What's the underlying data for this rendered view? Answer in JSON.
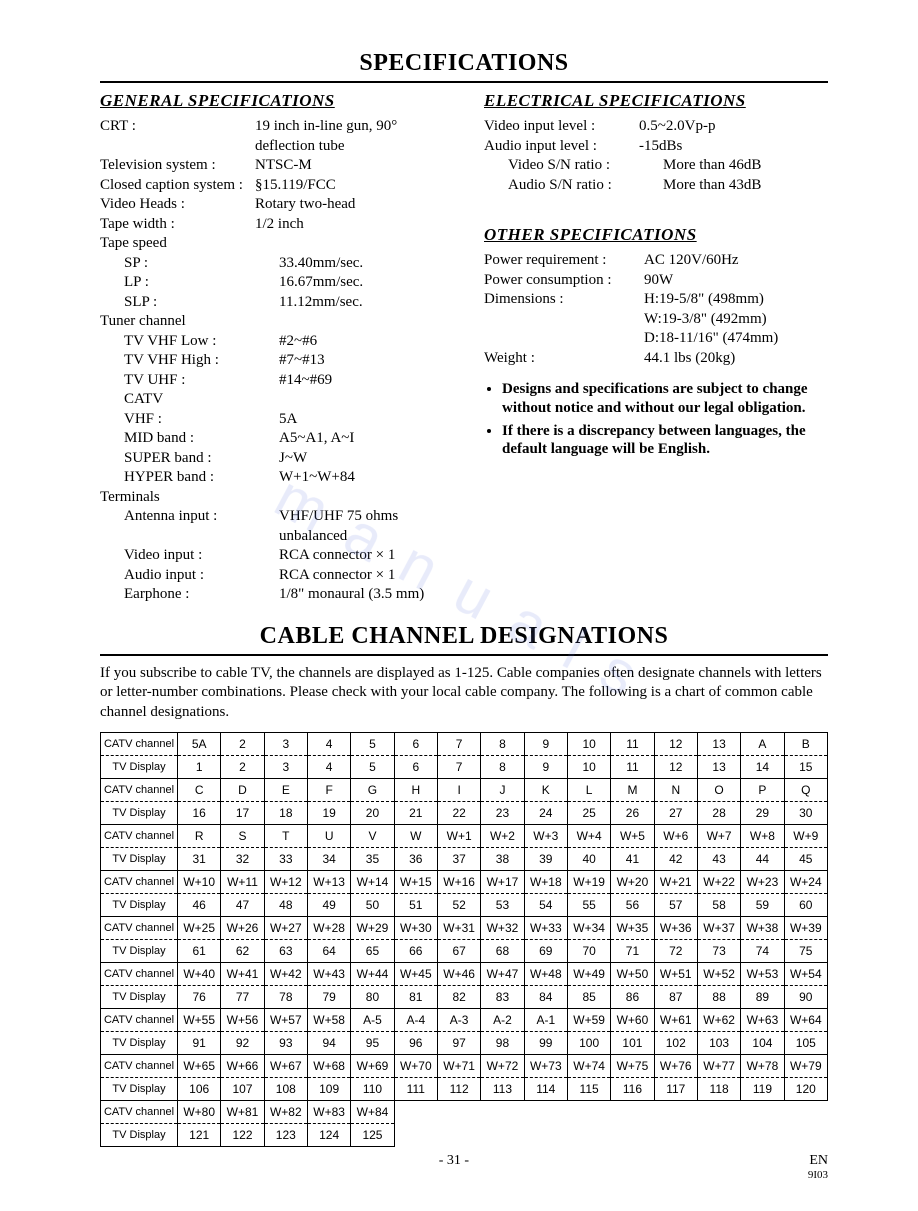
{
  "page_title": "SPECIFICATIONS",
  "general": {
    "title": "GENERAL SPECIFICATIONS",
    "rows": [
      {
        "label": "CRT :",
        "value": "19 inch in-line gun, 90°",
        "indent": false
      },
      {
        "label": "",
        "value": "deflection tube",
        "indent": false
      },
      {
        "label": "Television system :",
        "value": "NTSC-M",
        "indent": false
      },
      {
        "label": "Closed caption system :",
        "value": "§15.119/FCC",
        "indent": false
      },
      {
        "label": "Video Heads :",
        "value": "Rotary two-head",
        "indent": false
      },
      {
        "label": "Tape width :",
        "value": "1/2 inch",
        "indent": false
      },
      {
        "label": "Tape speed",
        "value": "",
        "indent": false
      },
      {
        "label": "SP :",
        "value": "33.40mm/sec.",
        "indent": true
      },
      {
        "label": "LP :",
        "value": "16.67mm/sec.",
        "indent": true
      },
      {
        "label": "SLP :",
        "value": "11.12mm/sec.",
        "indent": true
      },
      {
        "label": "Tuner channel",
        "value": "",
        "indent": false
      },
      {
        "label": "TV VHF Low :",
        "value": "#2~#6",
        "indent": true
      },
      {
        "label": "TV VHF High :",
        "value": "#7~#13",
        "indent": true
      },
      {
        "label": "TV UHF :",
        "value": "#14~#69",
        "indent": true
      },
      {
        "label": "CATV",
        "value": "",
        "indent": true
      },
      {
        "label": "VHF :",
        "value": "5A",
        "indent": true
      },
      {
        "label": "MID band :",
        "value": "A5~A1, A~I",
        "indent": true
      },
      {
        "label": "SUPER band :",
        "value": "J~W",
        "indent": true
      },
      {
        "label": "HYPER band :",
        "value": "W+1~W+84",
        "indent": true
      },
      {
        "label": "Terminals",
        "value": "",
        "indent": false
      },
      {
        "label": "Antenna input :",
        "value": "VHF/UHF 75 ohms",
        "indent": true
      },
      {
        "label": "",
        "value": "unbalanced",
        "indent": true
      },
      {
        "label": "Video input :",
        "value": "RCA connector × 1",
        "indent": true
      },
      {
        "label": "Audio input :",
        "value": "RCA connector × 1",
        "indent": true
      },
      {
        "label": "Earphone :",
        "value": "1/8\" monaural (3.5 mm)",
        "indent": true
      }
    ]
  },
  "electrical": {
    "title": "ELECTRICAL SPECIFICATIONS",
    "rows": [
      {
        "label": "Video input level :",
        "value": "0.5~2.0Vp-p",
        "indent": false
      },
      {
        "label": "Audio input level :",
        "value": "-15dBs",
        "indent": false
      },
      {
        "label": "Video S/N ratio :",
        "value": "More than 46dB",
        "indent": true
      },
      {
        "label": "Audio S/N ratio :",
        "value": "More than 43dB",
        "indent": true
      }
    ]
  },
  "other": {
    "title": "OTHER SPECIFICATIONS",
    "rows": [
      {
        "label": "Power requirement :",
        "value": "AC 120V/60Hz",
        "indent": false
      },
      {
        "label": "Power consumption :",
        "value": "90W",
        "indent": false
      },
      {
        "label": "Dimensions :",
        "value": "H:19-5/8\" (498mm)",
        "indent": false
      },
      {
        "label": "",
        "value": "W:19-3/8\" (492mm)",
        "indent": false
      },
      {
        "label": "",
        "value": "D:18-11/16\" (474mm)",
        "indent": false
      },
      {
        "label": "Weight :",
        "value": "44.1 lbs (20kg)",
        "indent": false
      }
    ]
  },
  "bullets": [
    "Designs and specifications are subject to change without notice and without our legal obligation.",
    "If there is a discrepancy between languages, the default language will be English."
  ],
  "cable": {
    "title": "CABLE CHANNEL DESIGNATIONS",
    "intro": "If you subscribe to cable TV, the channels are displayed as 1-125. Cable companies often designate channels with letters or letter-number combinations. Please check with your local cable company. The following is a chart of common cable channel designations.",
    "row_labels": {
      "catv": "CATV channel",
      "tv": "TV Display"
    },
    "groups": [
      {
        "catv": [
          "5A",
          "2",
          "3",
          "4",
          "5",
          "6",
          "7",
          "8",
          "9",
          "10",
          "11",
          "12",
          "13",
          "A",
          "B"
        ],
        "tv": [
          "1",
          "2",
          "3",
          "4",
          "5",
          "6",
          "7",
          "8",
          "9",
          "10",
          "11",
          "12",
          "13",
          "14",
          "15"
        ]
      },
      {
        "catv": [
          "C",
          "D",
          "E",
          "F",
          "G",
          "H",
          "I",
          "J",
          "K",
          "L",
          "M",
          "N",
          "O",
          "P",
          "Q"
        ],
        "tv": [
          "16",
          "17",
          "18",
          "19",
          "20",
          "21",
          "22",
          "23",
          "24",
          "25",
          "26",
          "27",
          "28",
          "29",
          "30"
        ]
      },
      {
        "catv": [
          "R",
          "S",
          "T",
          "U",
          "V",
          "W",
          "W+1",
          "W+2",
          "W+3",
          "W+4",
          "W+5",
          "W+6",
          "W+7",
          "W+8",
          "W+9"
        ],
        "tv": [
          "31",
          "32",
          "33",
          "34",
          "35",
          "36",
          "37",
          "38",
          "39",
          "40",
          "41",
          "42",
          "43",
          "44",
          "45"
        ]
      },
      {
        "catv": [
          "W+10",
          "W+11",
          "W+12",
          "W+13",
          "W+14",
          "W+15",
          "W+16",
          "W+17",
          "W+18",
          "W+19",
          "W+20",
          "W+21",
          "W+22",
          "W+23",
          "W+24"
        ],
        "tv": [
          "46",
          "47",
          "48",
          "49",
          "50",
          "51",
          "52",
          "53",
          "54",
          "55",
          "56",
          "57",
          "58",
          "59",
          "60"
        ]
      },
      {
        "catv": [
          "W+25",
          "W+26",
          "W+27",
          "W+28",
          "W+29",
          "W+30",
          "W+31",
          "W+32",
          "W+33",
          "W+34",
          "W+35",
          "W+36",
          "W+37",
          "W+38",
          "W+39"
        ],
        "tv": [
          "61",
          "62",
          "63",
          "64",
          "65",
          "66",
          "67",
          "68",
          "69",
          "70",
          "71",
          "72",
          "73",
          "74",
          "75"
        ]
      },
      {
        "catv": [
          "W+40",
          "W+41",
          "W+42",
          "W+43",
          "W+44",
          "W+45",
          "W+46",
          "W+47",
          "W+48",
          "W+49",
          "W+50",
          "W+51",
          "W+52",
          "W+53",
          "W+54"
        ],
        "tv": [
          "76",
          "77",
          "78",
          "79",
          "80",
          "81",
          "82",
          "83",
          "84",
          "85",
          "86",
          "87",
          "88",
          "89",
          "90"
        ]
      },
      {
        "catv": [
          "W+55",
          "W+56",
          "W+57",
          "W+58",
          "A-5",
          "A-4",
          "A-3",
          "A-2",
          "A-1",
          "W+59",
          "W+60",
          "W+61",
          "W+62",
          "W+63",
          "W+64"
        ],
        "tv": [
          "91",
          "92",
          "93",
          "94",
          "95",
          "96",
          "97",
          "98",
          "99",
          "100",
          "101",
          "102",
          "103",
          "104",
          "105"
        ]
      },
      {
        "catv": [
          "W+65",
          "W+66",
          "W+67",
          "W+68",
          "W+69",
          "W+70",
          "W+71",
          "W+72",
          "W+73",
          "W+74",
          "W+75",
          "W+76",
          "W+77",
          "W+78",
          "W+79"
        ],
        "tv": [
          "106",
          "107",
          "108",
          "109",
          "110",
          "111",
          "112",
          "113",
          "114",
          "115",
          "116",
          "117",
          "118",
          "119",
          "120"
        ]
      },
      {
        "catv": [
          "W+80",
          "W+81",
          "W+82",
          "W+83",
          "W+84",
          "",
          "",
          "",
          "",
          "",
          "",
          "",
          "",
          "",
          ""
        ],
        "tv": [
          "121",
          "122",
          "123",
          "124",
          "125",
          "",
          "",
          "",
          "",
          "",
          "",
          "",
          "",
          "",
          ""
        ]
      }
    ]
  },
  "footer": {
    "page": "- 31 -",
    "lang": "EN",
    "code": "9I03"
  }
}
